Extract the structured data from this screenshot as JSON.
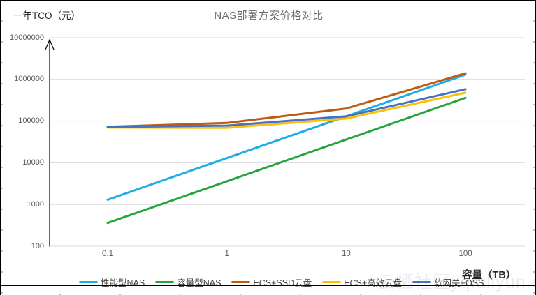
{
  "title": "NAS部署方案价格对比",
  "y_axis_title": "一年TCO（元）",
  "x_axis_title": "容量（TB）",
  "watermark": "云栖社区yq.aliyun.com",
  "colors": {
    "grid": "#d9d9d9",
    "axis": "#000000",
    "tick_text": "#595959",
    "title_text": "#6a6a6a"
  },
  "chart_data": {
    "type": "line",
    "x_scale": "log",
    "y_scale": "log",
    "x": [
      0.1,
      1,
      10,
      100
    ],
    "x_tick_labels": [
      "0.1",
      "1",
      "10",
      "100"
    ],
    "y_ticks": [
      100,
      1000,
      10000,
      100000,
      1000000,
      10000000
    ],
    "y_tick_labels": [
      "100",
      "1000",
      "10000",
      "100000",
      "1000000",
      "10000000"
    ],
    "xlim": [
      0.05,
      300
    ],
    "ylim": [
      100,
      10000000
    ],
    "grid": true,
    "legend_position": "bottom",
    "title": "NAS部署方案价格对比",
    "xlabel": "容量（TB）",
    "ylabel": "一年TCO（元）",
    "series": [
      {
        "name": "性能型NAS",
        "color": "#1EADE4",
        "values": [
          1300,
          13000,
          130000,
          1300000
        ]
      },
      {
        "name": "容量型NAS",
        "color": "#27A53D",
        "values": [
          360,
          3600,
          36000,
          360000
        ]
      },
      {
        "name": "ECS+SSD云盘",
        "color": "#C05A11",
        "values": [
          73000,
          90000,
          200000,
          1400000
        ]
      },
      {
        "name": "ECS+高效云盘",
        "color": "#FFC000",
        "values": [
          70000,
          69000,
          115000,
          480000
        ]
      },
      {
        "name": "软网关+OSS",
        "color": "#4472C4",
        "values": [
          72000,
          78000,
          130000,
          580000
        ]
      }
    ]
  }
}
